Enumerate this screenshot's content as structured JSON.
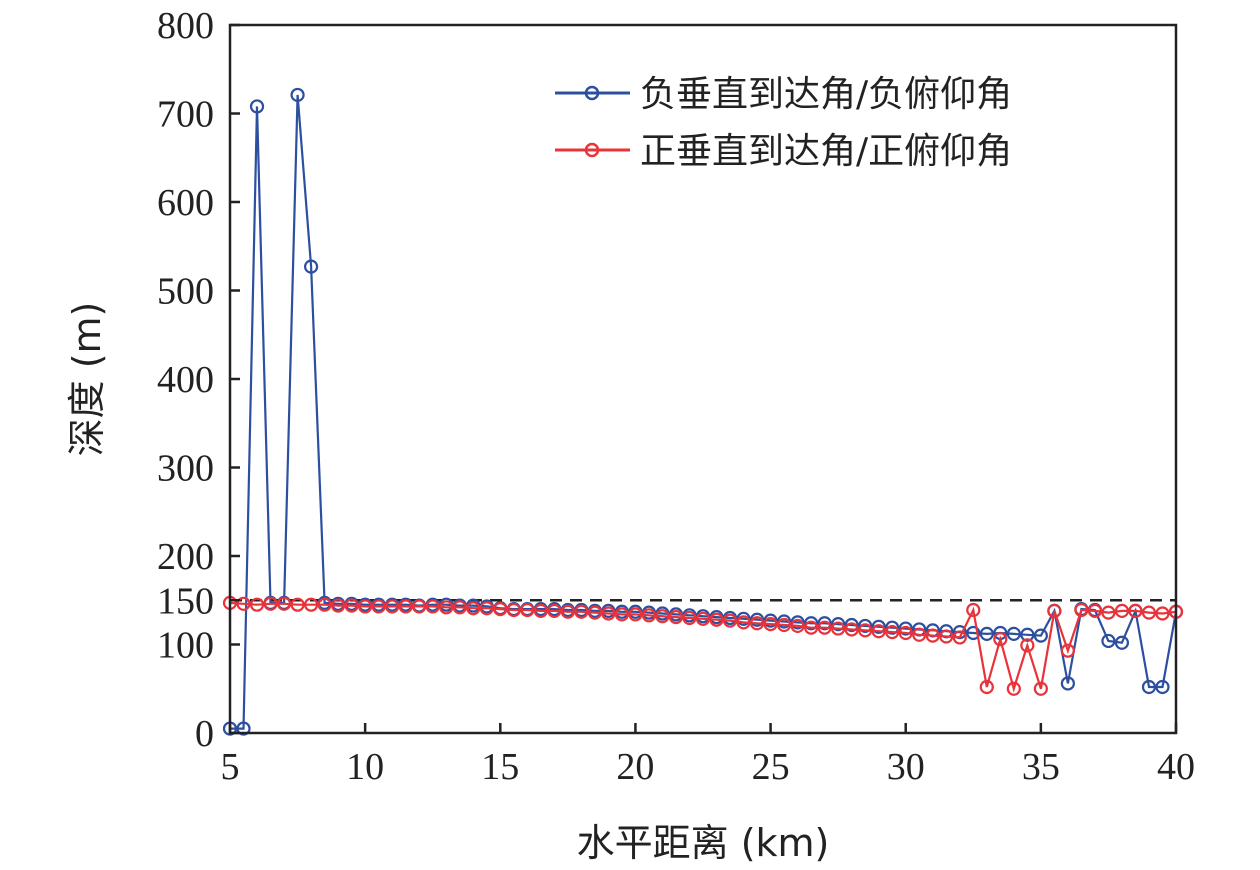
{
  "chart_data": {
    "type": "line",
    "xlabel": "水平距离 (km)",
    "ylabel": "深度 (m)",
    "xlim": [
      5,
      40
    ],
    "ylim": [
      0,
      800
    ],
    "xticks": [
      "5",
      "10",
      "15",
      "20",
      "25",
      "30",
      "35",
      "40"
    ],
    "yticks": [
      "0",
      "100",
      "150",
      "200",
      "300",
      "400",
      "500",
      "600",
      "700",
      "800"
    ],
    "reference_line": {
      "y": 150,
      "style": "dashed",
      "color": "#222222"
    },
    "legend_position": "top-right",
    "grid": false,
    "series": [
      {
        "name": "负垂直到达角/负俯仰角",
        "color": "#2c4fa0",
        "marker": "circle-open",
        "x": [
          5,
          5.5,
          6,
          6.5,
          7,
          7.5,
          8,
          8.5,
          9,
          9.5,
          10,
          10.5,
          11,
          11.5,
          12,
          12.5,
          13,
          13.5,
          14,
          14.5,
          15,
          15.5,
          16,
          16.5,
          17,
          17.5,
          18,
          18.5,
          19,
          19.5,
          20,
          20.5,
          21,
          21.5,
          22,
          22.5,
          23,
          23.5,
          24,
          24.5,
          25,
          25.5,
          26,
          26.5,
          27,
          27.5,
          28,
          28.5,
          29,
          29.5,
          30,
          30.5,
          31,
          31.5,
          32,
          32.5,
          33,
          33.5,
          34,
          34.5,
          35,
          35.5,
          36,
          36.5,
          37,
          37.5,
          38,
          38.5,
          39,
          39.5,
          40
        ],
        "y": [
          5,
          5,
          708,
          147,
          147,
          721,
          527,
          147,
          146,
          146,
          145,
          145,
          145,
          145,
          144,
          145,
          145,
          144,
          144,
          143,
          141,
          140,
          140,
          140,
          140,
          139,
          139,
          138,
          138,
          137,
          137,
          136,
          135,
          134,
          133,
          132,
          131,
          130,
          129,
          128,
          127,
          126,
          125,
          124,
          124,
          123,
          122,
          121,
          120,
          119,
          118,
          117,
          116,
          115,
          114,
          113,
          112,
          113,
          112,
          111,
          110,
          138,
          56,
          140,
          139,
          104,
          102,
          138,
          52,
          52,
          137
        ]
      },
      {
        "name": "正垂直到达角/正俯仰角",
        "color": "#e8333a",
        "marker": "circle-open",
        "x": [
          5,
          5.5,
          6,
          6.5,
          7,
          7.5,
          8,
          8.5,
          9,
          9.5,
          10,
          10.5,
          11,
          11.5,
          12,
          12.5,
          13,
          13.5,
          14,
          14.5,
          15,
          15.5,
          16,
          16.5,
          17,
          17.5,
          18,
          18.5,
          19,
          19.5,
          20,
          20.5,
          21,
          21.5,
          22,
          22.5,
          23,
          23.5,
          24,
          24.5,
          25,
          25.5,
          26,
          26.5,
          27,
          27.5,
          28,
          28.5,
          29,
          29.5,
          30,
          30.5,
          31,
          31.5,
          32,
          32.5,
          33,
          33.5,
          34,
          34.5,
          35,
          35.5,
          36,
          36.5,
          37,
          37.5,
          38,
          38.5,
          39,
          39.5,
          40
        ],
        "y": [
          147,
          146,
          145,
          146,
          146,
          145,
          145,
          145,
          144,
          144,
          143,
          143,
          143,
          143,
          143,
          143,
          142,
          142,
          141,
          141,
          140,
          139,
          139,
          138,
          138,
          137,
          137,
          136,
          135,
          134,
          134,
          133,
          132,
          131,
          130,
          129,
          128,
          127,
          125,
          124,
          123,
          122,
          121,
          119,
          119,
          118,
          117,
          116,
          115,
          114,
          113,
          111,
          110,
          109,
          108,
          139,
          52,
          106,
          50,
          99,
          50,
          138,
          93,
          139,
          138,
          136,
          138,
          138,
          136,
          135,
          137
        ]
      }
    ]
  }
}
